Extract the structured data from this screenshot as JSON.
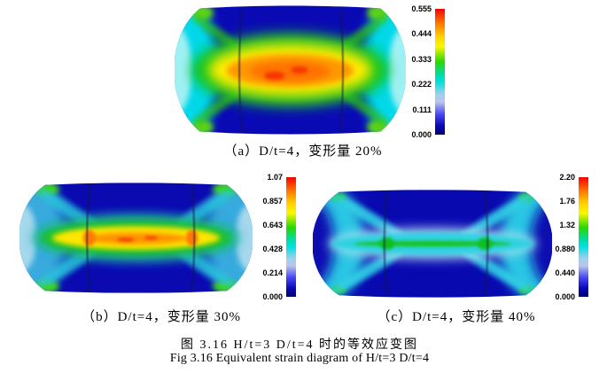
{
  "subfigures": {
    "a": {
      "caption": "（a）D/t=4，变形量 20%",
      "colorbar_labels": [
        "0.555",
        "0.444",
        "0.333",
        "0.222",
        "0.111",
        "0.000"
      ]
    },
    "b": {
      "caption": "（b）D/t=4，变形量 30%",
      "colorbar_labels": [
        "1.07",
        "0.857",
        "0.643",
        "0.428",
        "0.214",
        "0.000"
      ]
    },
    "c": {
      "caption": "（c）D/t=4，变形量 40%",
      "colorbar_labels": [
        "2.20",
        "1.76",
        "1.32",
        "0.880",
        "0.440",
        "0.000"
      ]
    }
  },
  "captions": {
    "zh": "图 3.16 H/t=3 D/t=4 时的等效应变图",
    "en": "Fig 3.16 Equivalent strain diagram of H/t=3 D/t=4"
  },
  "colors": {
    "colormap_stops": [
      {
        "c": "#f80000",
        "p": 0
      },
      {
        "c": "#ff7300",
        "p": 11
      },
      {
        "c": "#ffd200",
        "p": 22
      },
      {
        "c": "#f8f800",
        "p": 30
      },
      {
        "c": "#2ad800",
        "p": 42
      },
      {
        "c": "#00dca0",
        "p": 52
      },
      {
        "c": "#00e0e0",
        "p": 58
      },
      {
        "c": "#9fd0ec",
        "p": 68
      },
      {
        "c": "#b9c6ea",
        "p": 74
      },
      {
        "c": "#4846f2",
        "p": 84
      },
      {
        "c": "#0808b8",
        "p": 93
      },
      {
        "c": "#000070",
        "p": 100
      }
    ]
  },
  "chart_data": [
    {
      "type": "heatmap",
      "subfigure": "a",
      "label": "（a）D/t=4，变形量 20%",
      "quantity": "equivalent strain",
      "colorbar_ticks": [
        0.555,
        0.444,
        0.333,
        0.222,
        0.111,
        0.0
      ],
      "value_range": [
        0.0,
        0.555
      ],
      "colormap": "rainbow",
      "legend_position": "right"
    },
    {
      "type": "heatmap",
      "subfigure": "b",
      "label": "（b）D/t=4，变形量 30%",
      "quantity": "equivalent strain",
      "colorbar_ticks": [
        1.07,
        0.857,
        0.643,
        0.428,
        0.214,
        0.0
      ],
      "value_range": [
        0.0,
        1.07
      ],
      "colormap": "rainbow",
      "legend_position": "right"
    },
    {
      "type": "heatmap",
      "subfigure": "c",
      "label": "（c）D/t=4，变形量 40%",
      "quantity": "equivalent strain",
      "colorbar_ticks": [
        2.2,
        1.76,
        1.32,
        0.88,
        0.44,
        0.0
      ],
      "value_range": [
        0.0,
        2.2
      ],
      "colormap": "rainbow",
      "legend_position": "right"
    }
  ]
}
